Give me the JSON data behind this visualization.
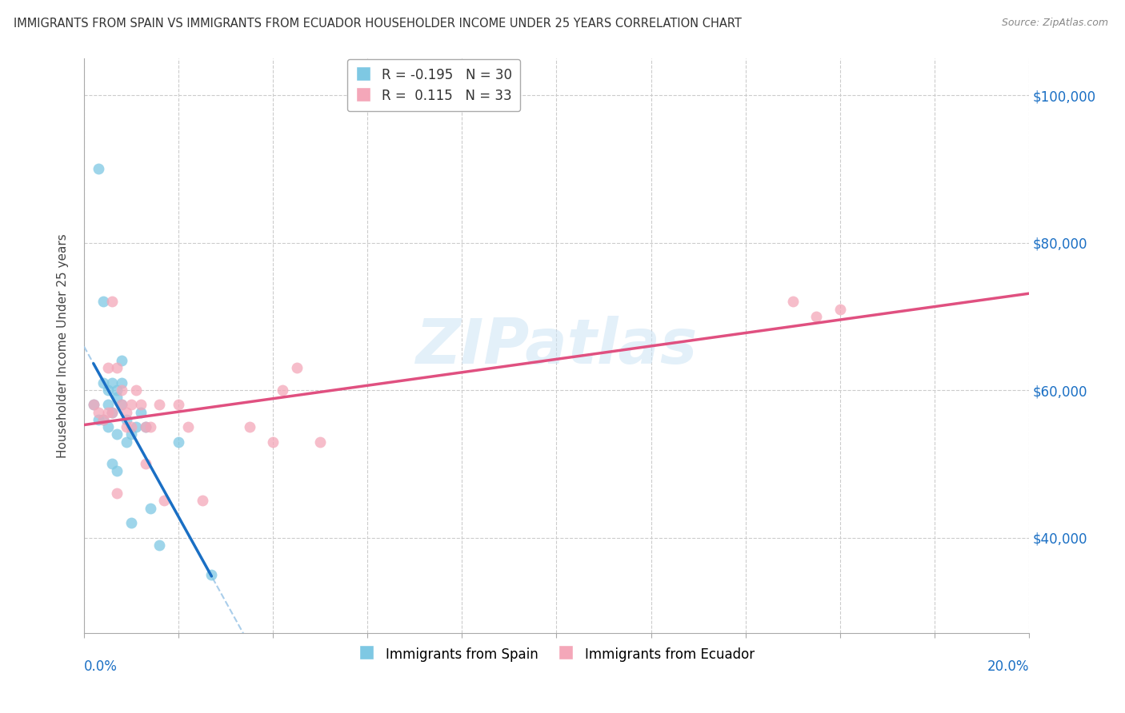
{
  "title": "IMMIGRANTS FROM SPAIN VS IMMIGRANTS FROM ECUADOR HOUSEHOLDER INCOME UNDER 25 YEARS CORRELATION CHART",
  "source": "Source: ZipAtlas.com",
  "ylabel": "Householder Income Under 25 years",
  "legend_labels": [
    "Immigrants from Spain",
    "Immigrants from Ecuador"
  ],
  "spain_color": "#7ec8e3",
  "ecuador_color": "#f4a7b9",
  "spain_line_color": "#1a6fc4",
  "ecuador_line_color": "#e05080",
  "dashed_line_color": "#a0c8e8",
  "spain_R": -0.195,
  "spain_N": 30,
  "ecuador_R": 0.115,
  "ecuador_N": 33,
  "xlim": [
    0.0,
    0.2
  ],
  "ylim": [
    27000,
    105000
  ],
  "yticks": [
    40000,
    60000,
    80000,
    100000
  ],
  "ytick_labels": [
    "$40,000",
    "$60,000",
    "$80,000",
    "$100,000"
  ],
  "watermark": "ZIPatlas",
  "spain_scatter_x": [
    0.002,
    0.003,
    0.003,
    0.004,
    0.004,
    0.004,
    0.005,
    0.005,
    0.005,
    0.006,
    0.006,
    0.006,
    0.007,
    0.007,
    0.007,
    0.007,
    0.008,
    0.008,
    0.008,
    0.009,
    0.009,
    0.01,
    0.01,
    0.011,
    0.012,
    0.013,
    0.014,
    0.016,
    0.02,
    0.027
  ],
  "spain_scatter_y": [
    58000,
    90000,
    56000,
    72000,
    56000,
    61000,
    60000,
    55000,
    58000,
    61000,
    57000,
    50000,
    60000,
    59000,
    54000,
    49000,
    61000,
    58000,
    64000,
    56000,
    53000,
    54000,
    42000,
    55000,
    57000,
    55000,
    44000,
    39000,
    53000,
    35000
  ],
  "ecuador_scatter_x": [
    0.002,
    0.003,
    0.004,
    0.005,
    0.005,
    0.006,
    0.006,
    0.007,
    0.007,
    0.008,
    0.008,
    0.009,
    0.009,
    0.01,
    0.01,
    0.011,
    0.012,
    0.013,
    0.013,
    0.014,
    0.016,
    0.017,
    0.02,
    0.022,
    0.025,
    0.035,
    0.04,
    0.042,
    0.045,
    0.05,
    0.15,
    0.155,
    0.16
  ],
  "ecuador_scatter_y": [
    58000,
    57000,
    56000,
    63000,
    57000,
    72000,
    57000,
    63000,
    46000,
    60000,
    58000,
    57000,
    55000,
    58000,
    55000,
    60000,
    58000,
    55000,
    50000,
    55000,
    58000,
    45000,
    58000,
    55000,
    45000,
    55000,
    53000,
    60000,
    63000,
    53000,
    72000,
    70000,
    71000
  ],
  "xtick_positions": [
    0.0,
    0.02,
    0.04,
    0.06,
    0.08,
    0.1,
    0.12,
    0.14,
    0.16,
    0.18,
    0.2
  ]
}
